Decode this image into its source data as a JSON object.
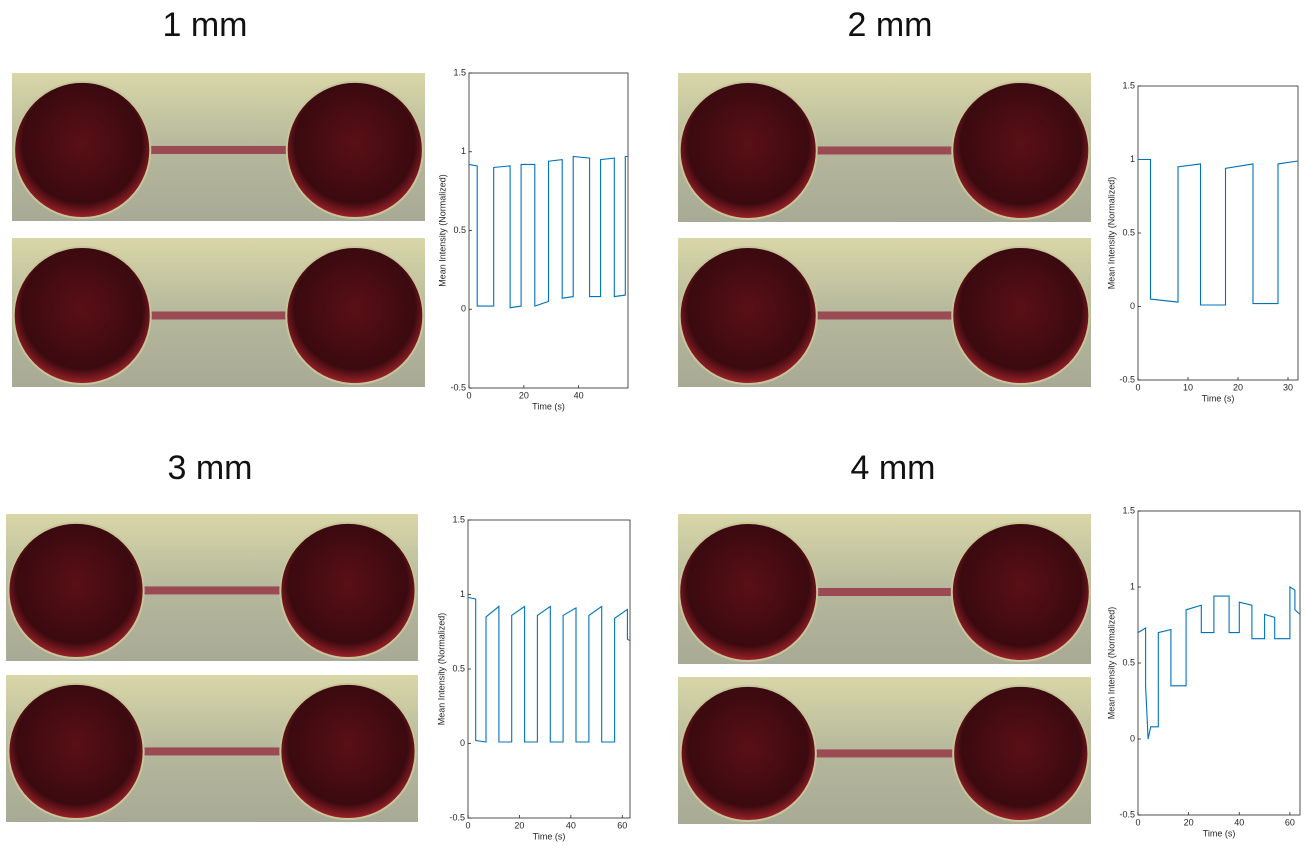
{
  "chart_data": [
    {
      "type": "line",
      "title": "1 mm",
      "xlabel": "Time (s)",
      "ylabel": "Mean Intensity (Normalized)",
      "color": "#0072bd",
      "xlim": [
        0,
        58
      ],
      "xticks": [
        0,
        20,
        40
      ],
      "ylim": [
        -0.5,
        1.5
      ],
      "yticks": [
        -0.5,
        0,
        0.5,
        1,
        1.5
      ],
      "x": [
        0,
        3,
        3,
        9,
        9,
        15,
        15,
        19,
        19,
        24,
        24,
        29,
        29,
        34,
        34,
        38,
        38,
        44,
        44,
        48,
        48,
        53,
        53,
        57,
        57,
        58
      ],
      "values": [
        0.92,
        0.91,
        0.02,
        0.02,
        0.9,
        0.91,
        0.01,
        0.02,
        0.92,
        0.92,
        0.02,
        0.05,
        0.94,
        0.95,
        0.07,
        0.08,
        0.97,
        0.96,
        0.08,
        0.08,
        0.95,
        0.96,
        0.08,
        0.09,
        0.97,
        0.97
      ]
    },
    {
      "type": "line",
      "title": "2 mm",
      "xlabel": "Time (s)",
      "ylabel": "Mean Intensity (Normalized)",
      "color": "#0072bd",
      "xlim": [
        0,
        32
      ],
      "xticks": [
        0,
        10,
        20,
        30
      ],
      "ylim": [
        -0.5,
        1.5
      ],
      "yticks": [
        -0.5,
        0,
        0.5,
        1,
        1.5
      ],
      "x": [
        0,
        2.5,
        2.5,
        8,
        8,
        12.5,
        12.5,
        17.5,
        17.5,
        23,
        23,
        28,
        28,
        32
      ],
      "values": [
        1,
        1,
        0.05,
        0.03,
        0.95,
        0.97,
        0.01,
        0.01,
        0.94,
        0.97,
        0.02,
        0.02,
        0.97,
        0.99
      ]
    },
    {
      "type": "line",
      "title": "3 mm",
      "xlabel": "Time (s)",
      "ylabel": "Mean Intensity (Normalized)",
      "color": "#0072bd",
      "xlim": [
        0,
        63
      ],
      "xticks": [
        0,
        20,
        40,
        60
      ],
      "ylim": [
        -0.5,
        1.5
      ],
      "yticks": [
        -0.5,
        0,
        0.5,
        1,
        1.5
      ],
      "x": [
        0,
        3,
        3,
        7,
        7,
        12,
        12,
        17,
        17,
        22,
        22,
        27,
        27,
        32,
        32,
        37,
        37,
        42,
        42,
        47,
        47,
        52,
        52,
        57,
        57,
        62,
        62,
        63
      ],
      "values": [
        0.98,
        0.97,
        0.02,
        0.01,
        0.85,
        0.92,
        0.01,
        0.01,
        0.86,
        0.92,
        0.01,
        0.01,
        0.86,
        0.92,
        0.01,
        0.01,
        0.86,
        0.91,
        0.01,
        0.01,
        0.86,
        0.92,
        0.01,
        0.01,
        0.84,
        0.9,
        0.7,
        0.69
      ]
    },
    {
      "type": "line",
      "title": "4 mm",
      "xlabel": "Time (s)",
      "ylabel": "Mean Intensity (Normalized)",
      "color": "#0072bd",
      "xlim": [
        0,
        64
      ],
      "xticks": [
        0,
        20,
        40,
        60
      ],
      "ylim": [
        -0.5,
        1.5
      ],
      "yticks": [
        -0.5,
        0,
        0.5,
        1,
        1.5
      ],
      "x": [
        0,
        3,
        3,
        4,
        5,
        5,
        8,
        8,
        13,
        13,
        19,
        19,
        25,
        25,
        30,
        30,
        36,
        36,
        40,
        40,
        45,
        45,
        50,
        50,
        54,
        54,
        60,
        60,
        62,
        62,
        64
      ],
      "values": [
        0.7,
        0.73,
        0.35,
        0,
        0.08,
        0.08,
        0.08,
        0.7,
        0.72,
        0.35,
        0.35,
        0.85,
        0.88,
        0.7,
        0.7,
        0.94,
        0.94,
        0.7,
        0.7,
        0.9,
        0.88,
        0.66,
        0.66,
        0.82,
        0.8,
        0.66,
        0.66,
        1.0,
        0.98,
        0.85,
        0.82
      ]
    }
  ]
}
